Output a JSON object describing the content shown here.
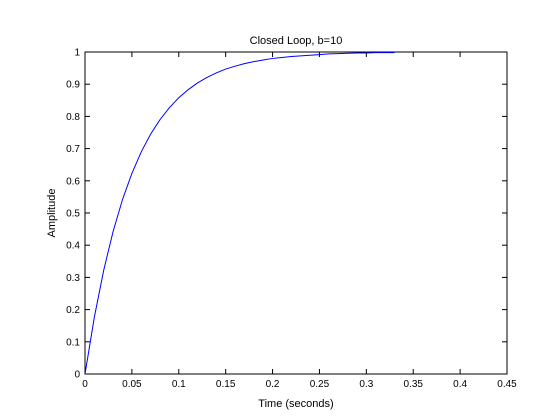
{
  "chart_data": {
    "type": "line",
    "title": "Closed Loop, b=10",
    "xlabel": "Time (seconds)",
    "ylabel": "Amplitude",
    "xlim": [
      0,
      0.45
    ],
    "ylim": [
      0,
      1
    ],
    "xticks": [
      "0",
      "0.05",
      "0.1",
      "0.15",
      "0.2",
      "0.25",
      "0.3",
      "0.35",
      "0.4",
      "0.45"
    ],
    "yticks": [
      "0",
      "0.1",
      "0.2",
      "0.3",
      "0.4",
      "0.5",
      "0.6",
      "0.7",
      "0.8",
      "0.9",
      "1"
    ],
    "grid": false,
    "series": [
      {
        "color": "#0000ff",
        "x": [
          0,
          0.01,
          0.02,
          0.03,
          0.04,
          0.05,
          0.06,
          0.07,
          0.08,
          0.09,
          0.1,
          0.11,
          0.12,
          0.13,
          0.14,
          0.15,
          0.16,
          0.17,
          0.18,
          0.19,
          0.2,
          0.21,
          0.22,
          0.23,
          0.24,
          0.25,
          0.26,
          0.27,
          0.28,
          0.29,
          0.3,
          0.31,
          0.32,
          0.33
        ],
        "y": [
          0,
          0.177,
          0.323,
          0.443,
          0.542,
          0.623,
          0.69,
          0.745,
          0.79,
          0.827,
          0.858,
          0.883,
          0.904,
          0.921,
          0.935,
          0.947,
          0.956,
          0.964,
          0.97,
          0.975,
          0.98,
          0.983,
          0.986,
          0.988,
          0.99,
          0.992,
          0.994,
          0.995,
          0.996,
          0.997,
          0.997,
          0.998,
          0.998,
          0.998
        ]
      }
    ]
  }
}
